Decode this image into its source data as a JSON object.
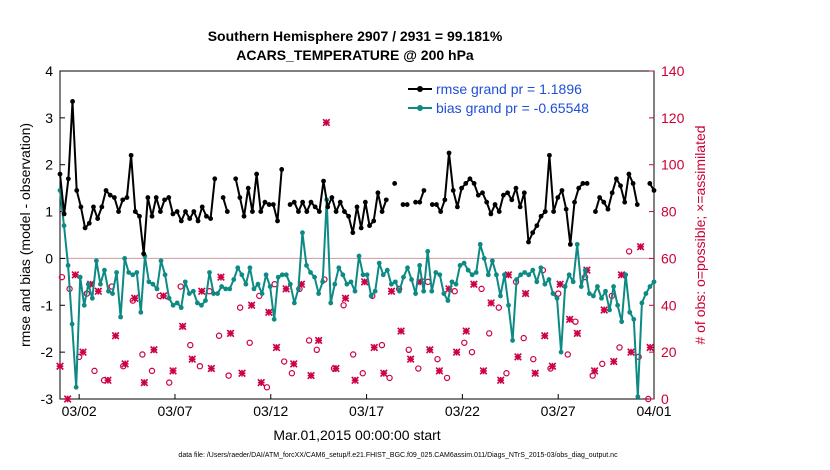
{
  "chart_data": {
    "type": "line",
    "title": [
      "Southern Hemisphere 2907 / 2931 = 99.181%",
      "ACARS_TEMPERATURE @ 200 hPa"
    ],
    "xlabel": "Mar.01,2015 00:00:00 start",
    "ylabel": "rmse and bias (model - observation)",
    "ylabel_right": "# of obs: o=possible; ×=assimilated",
    "xlim": [
      1,
      32
    ],
    "ylim": [
      -3,
      4
    ],
    "ylim_right": [
      0,
      140
    ],
    "xticks": [
      2,
      7,
      12,
      17,
      22,
      27,
      32
    ],
    "xtick_labels": [
      "03/02",
      "03/07",
      "03/12",
      "03/17",
      "03/22",
      "03/27",
      "04/01"
    ],
    "yticks": [
      -3,
      -2,
      -1,
      0,
      1,
      2,
      3,
      4
    ],
    "yticks_right": [
      0,
      20,
      40,
      60,
      80,
      100,
      120,
      140
    ],
    "legend": {
      "position": "top-right",
      "entries": [
        "rmse grand pr = 1.1896",
        "bias grand pr = -0.65548"
      ]
    },
    "footer": "data file: /Users/raeder/DAI/ATM_forcXX/CAM6_setup/f.e21.FHIST_BGC.f09_025.CAM6assim.011/Diags_NTrS_2015-03/obs_diag_output.nc",
    "colors": {
      "rmse": "#000000",
      "bias": "#0e8a85",
      "obs": "#cc0044",
      "zero_line": "#cf9aa3",
      "legend_text": "#1f4fd6"
    },
    "series": [
      {
        "name": "rmse",
        "values": [
          1.8,
          0.95,
          1.7,
          3.35,
          1.45,
          1.1,
          0.65,
          0.75,
          1.1,
          0.85,
          1.1,
          1.45,
          1.35,
          1.3,
          1.0,
          1.25,
          1.3,
          2.2,
          1.0,
          0.9,
          0.1,
          1.3,
          0.9,
          1.3,
          1.0,
          1.25,
          1.3,
          0.95,
          1.0,
          0.8,
          1.0,
          0.85,
          1.0,
          0.8,
          1.1,
          0.9,
          0.85,
          1.7,
          null,
          1.3,
          1.0,
          null,
          1.7,
          1.3,
          0.9,
          1.5,
          1.0,
          1.8,
          1.0,
          1.2,
          1.15,
          1.15,
          0.8,
          1.9,
          null,
          1.15,
          1.2,
          1.0,
          1.2,
          1.0,
          1.2,
          1.1,
          1.0,
          1.65,
          1.1,
          1.3,
          1.0,
          1.2,
          1.0,
          0.9,
          0.55,
          1.1,
          0.65,
          1.2,
          0.7,
          0.8,
          1.4,
          1.0,
          1.25,
          null,
          1.6,
          null,
          1.15,
          1.15,
          null,
          1.2,
          1.2,
          1.45,
          null,
          1.15,
          1.15,
          1.0,
          1.25,
          2.25,
          1.45,
          1.1,
          1.5,
          1.6,
          1.7,
          1.6,
          1.35,
          1.4,
          1.2,
          0.95,
          1.15,
          1.0,
          1.35,
          1.4,
          1.25,
          1.5,
          1.1,
          1.4,
          0.35,
          0.55,
          0.7,
          0.9,
          1.0,
          2.2,
          1.0,
          1.3,
          1.45,
          1.05,
          0.3,
          1.2,
          1.5,
          1.6,
          1.6,
          null,
          1.0,
          1.3,
          1.2,
          1.05,
          1.4,
          1.7,
          1.55,
          1.2,
          1.8,
          1.6,
          1.15,
          null,
          null,
          1.6,
          1.45
        ]
      },
      {
        "name": "bias",
        "values": [
          1.45,
          0.7,
          -0.15,
          -1.4,
          -2.75,
          -0.4,
          -1.0,
          -0.55,
          -0.85,
          -0.05,
          -0.55,
          -0.25,
          -0.7,
          -0.75,
          -0.3,
          -1.25,
          0.0,
          -0.3,
          -0.35,
          -0.3,
          -1.15,
          0.05,
          -0.5,
          -0.55,
          -0.65,
          -0.05,
          -0.35,
          -0.85,
          -1.0,
          -0.95,
          -1.05,
          -0.5,
          -0.75,
          -0.7,
          -0.95,
          -1.0,
          -0.9,
          -0.3,
          -0.75,
          -0.75,
          -0.6,
          -0.65,
          -0.65,
          -0.45,
          -0.2,
          -0.35,
          -0.55,
          -0.2,
          -0.65,
          -0.55,
          -0.75,
          -0.35,
          -0.6,
          -1.3,
          -0.4,
          -0.35,
          -0.35,
          -0.55,
          -0.95,
          -0.65,
          0.55,
          -0.15,
          -0.3,
          -0.4,
          -0.75,
          -0.5,
          1.25,
          -0.95,
          -0.55,
          -0.2,
          -0.35,
          -0.55,
          -0.5,
          -0.7,
          0.05,
          -0.35,
          -0.35,
          -0.8,
          -0.7,
          -0.1,
          -0.35,
          -0.25,
          -0.55,
          -0.5,
          -0.7,
          -0.4,
          -0.2,
          -0.45,
          -0.75,
          -0.15,
          -0.7,
          0.15,
          -0.7,
          -0.3,
          -0.35,
          -0.75,
          -0.9,
          -0.5,
          -0.55,
          -0.15,
          -0.1,
          -0.25,
          -0.35,
          -0.3,
          0.3,
          0.0,
          -0.35,
          -0.05,
          -0.35,
          -0.8,
          -0.35,
          -1.0,
          -1.75,
          -0.45,
          -0.35,
          -0.3,
          -0.35,
          -0.25,
          -0.5,
          -0.2,
          -0.55,
          -0.45,
          -0.75,
          -0.85,
          -2.0,
          -0.6,
          -0.35,
          -0.5,
          0.3,
          -0.6,
          -0.25,
          -0.75,
          -0.8,
          -0.6,
          -0.85,
          -0.7,
          -1.1,
          -0.6,
          -1.0,
          -1.35,
          -0.35,
          -1.15,
          -1.3,
          -2.95,
          -0.95,
          -0.75,
          -0.6,
          -0.5
        ]
      },
      {
        "name": "obs_possible",
        "axis": "right",
        "x": [
          1.1,
          1.5,
          2.0,
          2.4,
          2.8,
          3.3,
          3.7,
          4.3,
          4.8,
          5.3,
          5.8,
          6.2,
          6.7,
          7.3,
          7.8,
          8.3,
          8.8,
          9.3,
          9.8,
          10.4,
          10.9,
          11.4,
          11.8,
          12.2,
          12.7,
          13.1,
          13.5,
          14.0,
          14.4,
          14.8,
          15.3,
          15.8,
          16.3,
          16.8,
          17.3,
          17.8,
          18.2,
          18.7,
          19.2,
          19.7,
          20.2,
          20.7,
          21.2,
          21.6,
          22.1,
          22.5,
          23.0,
          23.4,
          23.9,
          24.3,
          24.8,
          25.2,
          25.7,
          26.2,
          26.6,
          27.0,
          27.5,
          27.9,
          28.4,
          28.8,
          29.3,
          29.8,
          30.2,
          30.7,
          31.2,
          31.7
        ],
        "y": [
          52,
          47,
          18,
          45,
          12,
          8,
          48,
          14,
          42,
          19,
          12,
          44,
          7,
          48,
          23,
          14,
          46,
          27,
          10,
          39,
          24,
          44,
          5,
          49,
          16,
          11,
          47,
          25,
          21,
          51,
          13,
          40,
          19,
          11,
          44,
          23,
          9,
          47,
          21,
          13,
          50,
          17,
          9,
          46,
          24,
          20,
          47,
          28,
          39,
          11,
          50,
          26,
          17,
          55,
          13,
          45,
          19,
          33,
          52,
          10,
          15,
          44,
          22,
          63,
          18,
          0
        ]
      },
      {
        "name": "obs_assimilated",
        "axis": "right",
        "x": [
          1.0,
          1.4,
          1.8,
          2.2,
          2.6,
          3.0,
          3.5,
          3.9,
          4.4,
          4.9,
          5.4,
          5.9,
          6.4,
          6.9,
          7.4,
          7.9,
          8.4,
          8.9,
          9.4,
          9.9,
          10.5,
          11.0,
          11.5,
          11.9,
          12.3,
          12.8,
          13.2,
          13.6,
          14.1,
          14.5,
          14.9,
          15.4,
          15.9,
          16.4,
          16.9,
          17.4,
          17.9,
          18.3,
          18.8,
          19.3,
          19.8,
          20.3,
          20.8,
          21.3,
          21.7,
          22.2,
          22.6,
          23.1,
          23.5,
          24.0,
          24.4,
          24.9,
          25.3,
          25.8,
          26.3,
          26.7,
          27.1,
          27.6,
          28.0,
          28.5,
          28.9,
          29.4,
          29.9,
          30.3,
          30.8,
          31.3,
          31.8
        ],
        "y": [
          14,
          0,
          53,
          20,
          49,
          46,
          8,
          27,
          15,
          43,
          7,
          21,
          44,
          12,
          31,
          17,
          46,
          13,
          52,
          28,
          11,
          40,
          7,
          37,
          22,
          47,
          15,
          49,
          10,
          25,
          118,
          13,
          43,
          8,
          50,
          22,
          11,
          46,
          29,
          17,
          50,
          21,
          12,
          47,
          20,
          29,
          49,
          12,
          41,
          8,
          53,
          18,
          45,
          11,
          27,
          14,
          49,
          34,
          28,
          55,
          12,
          38,
          16,
          53,
          20,
          65,
          22
        ]
      }
    ]
  }
}
